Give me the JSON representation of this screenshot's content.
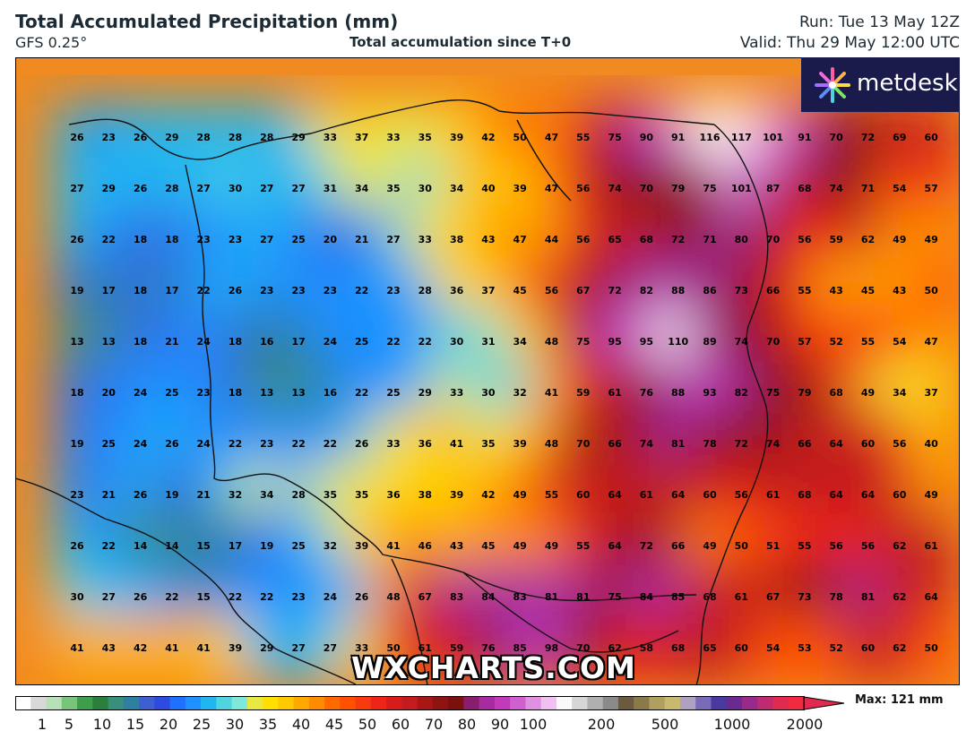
{
  "header": {
    "title": "Total Accumulated Precipitation (mm)",
    "model": "GFS 0.25°",
    "subtitle": "Total accumulation since T+0",
    "run": "Run: Tue 13 May 12Z",
    "valid": "Valid: Thu 29 May 12:00 UTC"
  },
  "logo": {
    "text": "metdesk"
  },
  "watermark": "WXCHARTS.COM",
  "colorbar": {
    "labels": [
      "1",
      "5",
      "10",
      "15",
      "20",
      "25",
      "30",
      "35",
      "40",
      "45",
      "50",
      "60",
      "70",
      "80",
      "90",
      "100",
      "200",
      "500",
      "1000",
      "2000"
    ],
    "max_label": "Max: 121 mm"
  },
  "chart_data": {
    "type": "heatmap",
    "grid": [
      [
        26,
        23,
        26,
        29,
        28,
        28,
        28,
        29,
        33,
        37,
        33,
        35,
        39,
        42,
        50,
        47,
        55,
        75,
        90,
        91,
        116,
        117,
        101,
        91,
        70,
        72,
        69,
        60
      ],
      [
        27,
        29,
        26,
        28,
        27,
        30,
        27,
        27,
        31,
        34,
        35,
        30,
        34,
        40,
        39,
        47,
        56,
        74,
        70,
        79,
        75,
        101,
        87,
        68,
        74,
        71,
        54,
        57
      ],
      [
        26,
        22,
        18,
        18,
        23,
        23,
        27,
        25,
        20,
        21,
        27,
        33,
        38,
        43,
        47,
        44,
        56,
        65,
        68,
        72,
        71,
        80,
        70,
        56,
        59,
        62,
        49,
        49
      ],
      [
        19,
        17,
        18,
        17,
        22,
        26,
        23,
        23,
        23,
        22,
        23,
        28,
        36,
        37,
        45,
        56,
        67,
        72,
        82,
        88,
        86,
        73,
        66,
        55,
        43,
        45,
        43,
        50
      ],
      [
        13,
        13,
        18,
        21,
        24,
        18,
        16,
        17,
        24,
        25,
        22,
        22,
        30,
        31,
        34,
        48,
        75,
        95,
        95,
        110,
        89,
        74,
        70,
        57,
        52,
        55,
        54,
        47
      ],
      [
        18,
        20,
        24,
        25,
        23,
        18,
        13,
        13,
        16,
        22,
        25,
        29,
        33,
        30,
        32,
        41,
        59,
        61,
        76,
        88,
        93,
        82,
        75,
        79,
        68,
        49,
        34,
        37
      ],
      [
        19,
        25,
        24,
        26,
        24,
        22,
        23,
        22,
        22,
        26,
        33,
        36,
        41,
        35,
        39,
        48,
        70,
        66,
        74,
        81,
        78,
        72,
        74,
        66,
        64,
        60,
        56,
        40
      ],
      [
        23,
        21,
        26,
        19,
        21,
        32,
        34,
        28,
        35,
        35,
        36,
        38,
        39,
        42,
        49,
        55,
        60,
        64,
        61,
        64,
        60,
        56,
        61,
        68,
        64,
        64,
        60,
        49
      ],
      [
        26,
        22,
        14,
        14,
        15,
        17,
        19,
        25,
        32,
        39,
        41,
        46,
        43,
        45,
        49,
        49,
        55,
        64,
        72,
        66,
        49,
        50,
        51,
        55,
        56,
        56,
        62,
        61
      ],
      [
        30,
        27,
        26,
        22,
        15,
        22,
        22,
        23,
        24,
        26,
        48,
        67,
        83,
        84,
        83,
        81,
        81,
        75,
        84,
        85,
        68,
        61,
        67,
        73,
        78,
        81,
        62,
        64
      ],
      [
        41,
        43,
        42,
        41,
        41,
        39,
        29,
        27,
        27,
        33,
        50,
        61,
        59,
        76,
        85,
        98,
        70,
        62,
        58,
        68,
        65,
        60,
        54,
        53,
        52,
        60,
        62,
        50
      ]
    ],
    "units": "mm"
  }
}
